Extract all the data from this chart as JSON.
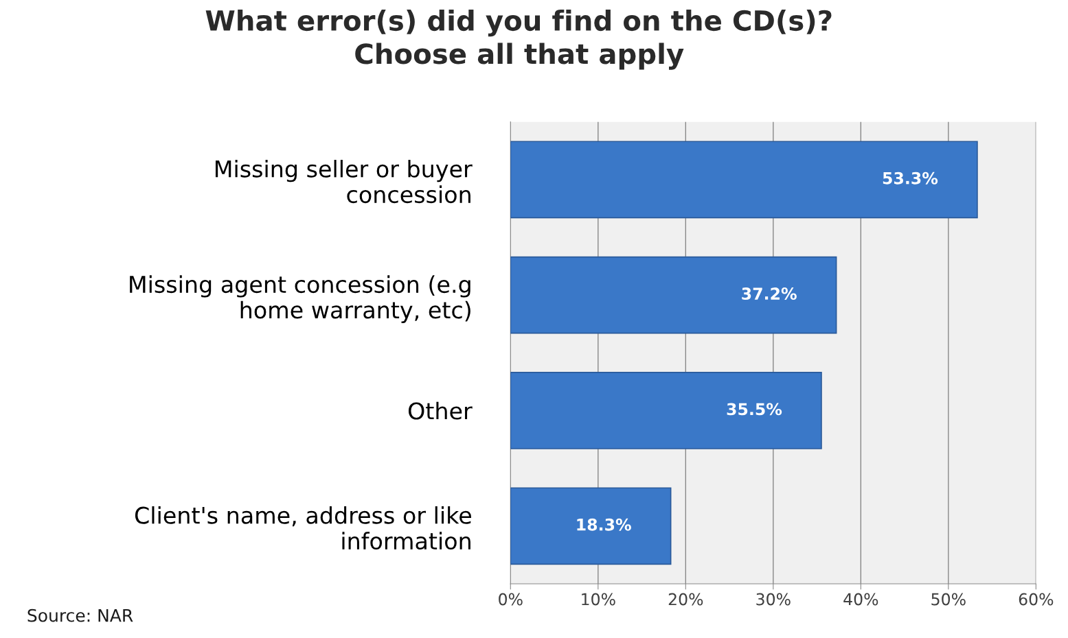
{
  "chart_data": {
    "type": "bar",
    "orientation": "horizontal",
    "title": "What error(s) did you find on the CD(s)?\nChoose all that apply",
    "categories": [
      "Missing seller or buyer\nconcession",
      "Missing agent concession (e.g\nhome warranty, etc)",
      "Other",
      "Client's name, address or like\ninformation"
    ],
    "values": [
      53.3,
      37.2,
      35.5,
      18.3
    ],
    "color": "#3a78c8",
    "value_labels": [
      "53.3%",
      "37.2%",
      "35.5%",
      "18.3%"
    ],
    "xlim": [
      0,
      60
    ],
    "xticks": [
      {
        "value": 0,
        "label": "0%"
      },
      {
        "value": 10,
        "label": "10%"
      },
      {
        "value": 20,
        "label": "20%"
      },
      {
        "value": 30,
        "label": "30%"
      },
      {
        "value": 40,
        "label": "40%"
      },
      {
        "value": 50,
        "label": "50%"
      },
      {
        "value": 60,
        "label": "60%"
      }
    ],
    "grid": "x",
    "legend": false,
    "annotations": [
      "Source: NAR"
    ]
  }
}
